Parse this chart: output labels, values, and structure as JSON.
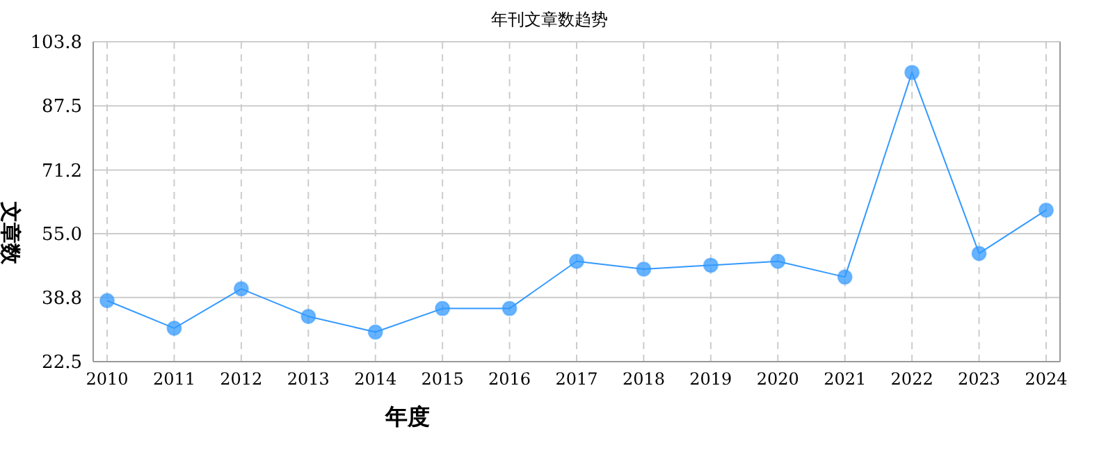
{
  "chart_data": {
    "type": "line",
    "title": "年刊文章数趋势",
    "xlabel": "年度",
    "ylabel": "文章数",
    "categories": [
      "2010",
      "2011",
      "2012",
      "2013",
      "2014",
      "2015",
      "2016",
      "2017",
      "2018",
      "2019",
      "2020",
      "2021",
      "2022",
      "2023",
      "2024"
    ],
    "series": [
      {
        "color": "#3399ff",
        "values": [
          38,
          31,
          41,
          34,
          30,
          36,
          36,
          48,
          46,
          47,
          48,
          44,
          96,
          50,
          61
        ]
      }
    ],
    "ylim": [
      22.5,
      103.8
    ],
    "yticks": [
      22.5,
      38.8,
      {
        "value": 55,
        "label": "55.0"
      },
      71.2,
      87.5,
      103.8
    ],
    "grid": true,
    "legend": false,
    "marker": "circle",
    "line_style": "solid"
  }
}
